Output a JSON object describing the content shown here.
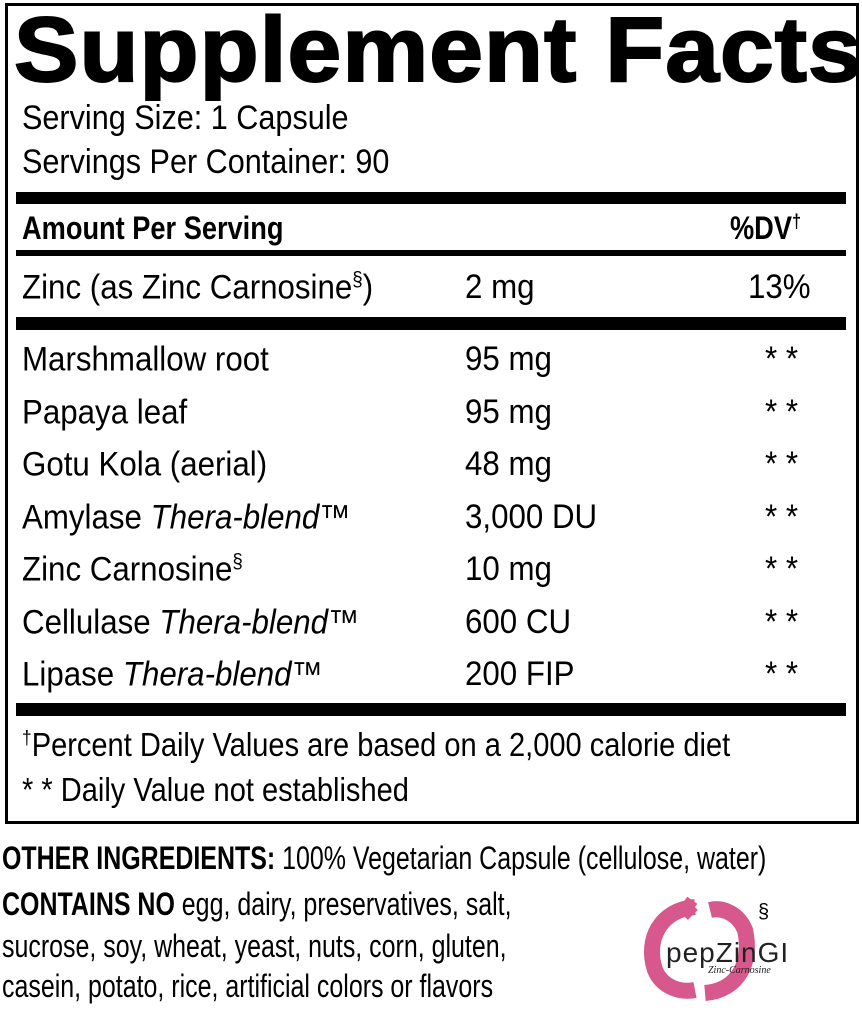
{
  "title": "Supplement Facts",
  "serving_size": "Serving Size: 1 Capsule",
  "servings_per_container": "Servings Per Container: 90",
  "header": {
    "amount": "Amount Per Serving",
    "dv": "%DV",
    "dv_mark": "†"
  },
  "zinc_row": {
    "name": "Zinc (as Zinc Carnosine",
    "mark": "§",
    "close": ")",
    "amount": "2 mg",
    "dv": "13%"
  },
  "ingredients": [
    {
      "name": "Marshmallow root",
      "italic": "",
      "mark": "",
      "amount": "95 mg",
      "dv": "* *"
    },
    {
      "name": "Papaya leaf",
      "italic": "",
      "mark": "",
      "amount": "95 mg",
      "dv": "* *"
    },
    {
      "name": "Gotu Kola (aerial)",
      "italic": "",
      "mark": "",
      "amount": "48 mg",
      "dv": "* *"
    },
    {
      "name": "Amylase ",
      "italic": "Thera-blend™",
      "mark": "",
      "amount": "3,000 DU",
      "dv": "* *"
    },
    {
      "name": "Zinc Carnosine",
      "italic": "",
      "mark": "§",
      "amount": "10 mg",
      "dv": "* *"
    },
    {
      "name": "Cellulase ",
      "italic": "Thera-blend™",
      "mark": "",
      "amount": "600 CU",
      "dv": "* *"
    },
    {
      "name": "Lipase ",
      "italic": "Thera-blend™",
      "mark": "",
      "amount": "200 FIP",
      "dv": "* *"
    }
  ],
  "footnotes": {
    "dagger": "†",
    "dv_note": "Percent Daily Values are based on a 2,000 calorie diet",
    "not_established": "* * Daily Value not established"
  },
  "other": {
    "label": "OTHER INGREDIENTS:",
    "text": " 100% Vegetarian Capsule (cellulose, water)"
  },
  "contains_no": {
    "label": "CONTAINS NO",
    "line1": " egg, dairy, preservatives, salt,",
    "line2": "sucrose, soy, wheat, yeast, nuts, corn, gluten,",
    "line3": "casein, potato, rice, artificial colors or flavors"
  },
  "logo": {
    "text": "pepZinGI",
    "sub": "Zinc-Carnosine",
    "mark": "§",
    "color": "#d6588c"
  }
}
